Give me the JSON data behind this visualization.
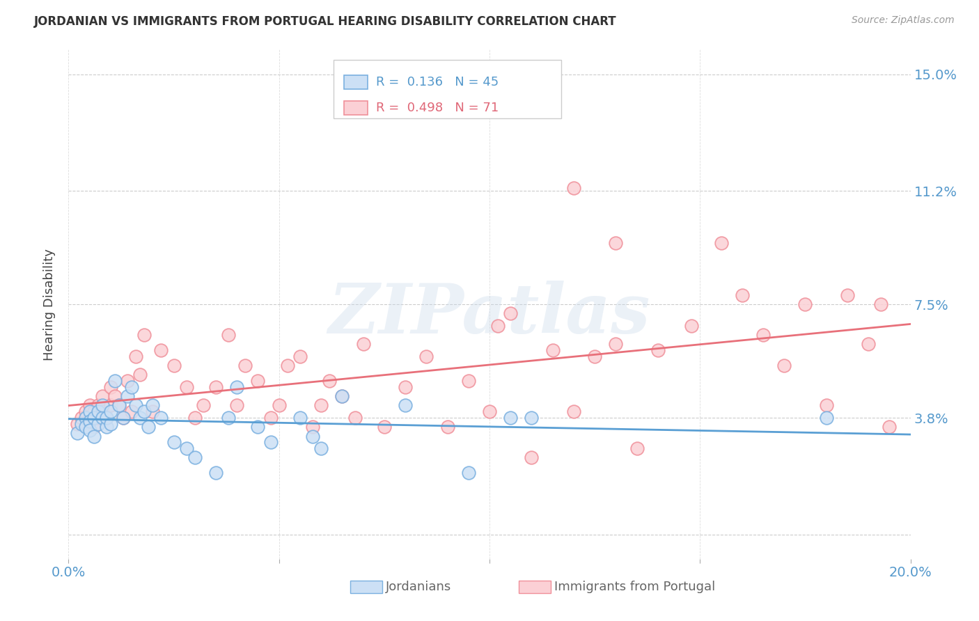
{
  "title": "JORDANIAN VS IMMIGRANTS FROM PORTUGAL HEARING DISABILITY CORRELATION CHART",
  "source": "Source: ZipAtlas.com",
  "ylabel": "Hearing Disability",
  "xlim": [
    0.0,
    0.2
  ],
  "ylim": [
    -0.008,
    0.158
  ],
  "yticks": [
    0.0,
    0.038,
    0.075,
    0.112,
    0.15
  ],
  "ytick_labels": [
    "",
    "3.8%",
    "7.5%",
    "11.2%",
    "15.0%"
  ],
  "xticks": [
    0.0,
    0.05,
    0.1,
    0.15,
    0.2
  ],
  "grid_color": "#cccccc",
  "background_color": "#ffffff",
  "series1_color": "#7ab0e0",
  "series2_color": "#f0909a",
  "series1_label": "Jordanians",
  "series2_label": "Immigrants from Portugal",
  "line1_color": "#5a9fd4",
  "line2_color": "#e8707a",
  "R1": 0.136,
  "N1": 45,
  "R2": 0.498,
  "N2": 71,
  "watermark": "ZIPatlas",
  "jordanians_x": [
    0.002,
    0.003,
    0.004,
    0.004,
    0.005,
    0.005,
    0.005,
    0.006,
    0.006,
    0.007,
    0.007,
    0.008,
    0.008,
    0.009,
    0.009,
    0.01,
    0.01,
    0.011,
    0.012,
    0.013,
    0.014,
    0.015,
    0.016,
    0.017,
    0.018,
    0.019,
    0.02,
    0.022,
    0.025,
    0.028,
    0.03,
    0.035,
    0.038,
    0.04,
    0.045,
    0.048,
    0.055,
    0.058,
    0.06,
    0.065,
    0.08,
    0.095,
    0.105,
    0.11,
    0.18
  ],
  "jordanians_y": [
    0.033,
    0.036,
    0.038,
    0.035,
    0.04,
    0.037,
    0.034,
    0.038,
    0.032,
    0.036,
    0.04,
    0.038,
    0.042,
    0.035,
    0.038,
    0.036,
    0.04,
    0.05,
    0.042,
    0.038,
    0.045,
    0.048,
    0.042,
    0.038,
    0.04,
    0.035,
    0.042,
    0.038,
    0.03,
    0.028,
    0.025,
    0.02,
    0.038,
    0.048,
    0.035,
    0.03,
    0.038,
    0.032,
    0.028,
    0.045,
    0.042,
    0.02,
    0.038,
    0.038,
    0.038
  ],
  "portugal_x": [
    0.002,
    0.003,
    0.004,
    0.005,
    0.005,
    0.006,
    0.006,
    0.007,
    0.007,
    0.008,
    0.008,
    0.009,
    0.01,
    0.01,
    0.011,
    0.012,
    0.013,
    0.014,
    0.015,
    0.016,
    0.017,
    0.018,
    0.02,
    0.022,
    0.025,
    0.028,
    0.03,
    0.032,
    0.035,
    0.038,
    0.04,
    0.042,
    0.045,
    0.048,
    0.05,
    0.052,
    0.055,
    0.058,
    0.06,
    0.062,
    0.065,
    0.068,
    0.07,
    0.075,
    0.08,
    0.085,
    0.09,
    0.095,
    0.1,
    0.105,
    0.11,
    0.115,
    0.12,
    0.125,
    0.13,
    0.135,
    0.14,
    0.148,
    0.155,
    0.16,
    0.165,
    0.17,
    0.175,
    0.18,
    0.185,
    0.19,
    0.193,
    0.195,
    0.12,
    0.13,
    0.102
  ],
  "portugal_y": [
    0.036,
    0.038,
    0.04,
    0.038,
    0.042,
    0.035,
    0.04,
    0.042,
    0.038,
    0.045,
    0.04,
    0.038,
    0.042,
    0.048,
    0.045,
    0.042,
    0.038,
    0.05,
    0.04,
    0.058,
    0.052,
    0.065,
    0.04,
    0.06,
    0.055,
    0.048,
    0.038,
    0.042,
    0.048,
    0.065,
    0.042,
    0.055,
    0.05,
    0.038,
    0.042,
    0.055,
    0.058,
    0.035,
    0.042,
    0.05,
    0.045,
    0.038,
    0.062,
    0.035,
    0.048,
    0.058,
    0.035,
    0.05,
    0.04,
    0.072,
    0.025,
    0.06,
    0.04,
    0.058,
    0.062,
    0.028,
    0.06,
    0.068,
    0.095,
    0.078,
    0.065,
    0.055,
    0.075,
    0.042,
    0.078,
    0.062,
    0.075,
    0.035,
    0.113,
    0.095,
    0.068
  ]
}
